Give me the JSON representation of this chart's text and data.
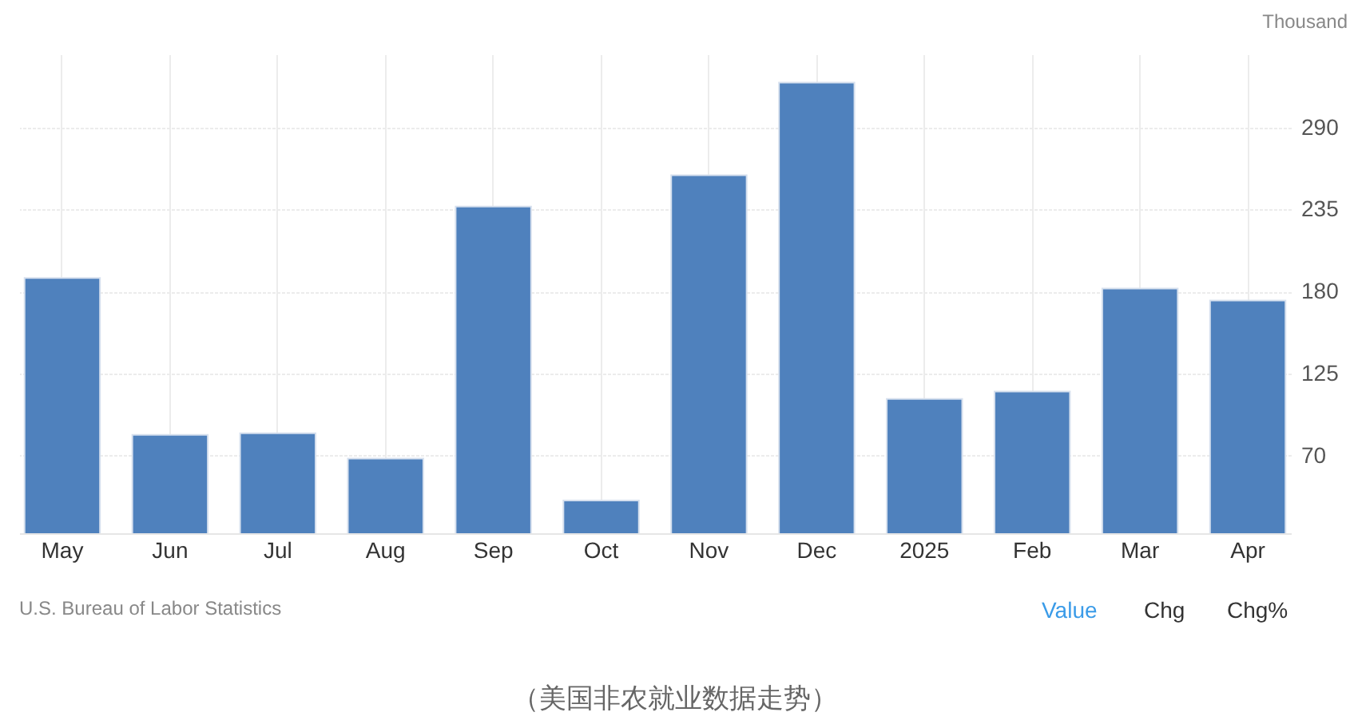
{
  "chart_data": {
    "type": "bar",
    "ylabel": "Thousand",
    "categories": [
      "May",
      "Jun",
      "Jul",
      "Aug",
      "Sep",
      "Oct",
      "Nov",
      "Dec",
      "2025",
      "Feb",
      "Mar",
      "Apr"
    ],
    "values": [
      189,
      84,
      85,
      68,
      237,
      40,
      258,
      320,
      108,
      113,
      182,
      174
    ],
    "color": "#4f81bd",
    "ylim": [
      18,
      339
    ],
    "yticks": [
      70,
      125,
      180,
      235,
      290
    ],
    "grid": true,
    "annotations": [
      "U.S. Bureau of Labor Statistics",
      "Value",
      "Chg",
      "Chg%",
      "（美国非农就业数据走势）"
    ]
  }
}
